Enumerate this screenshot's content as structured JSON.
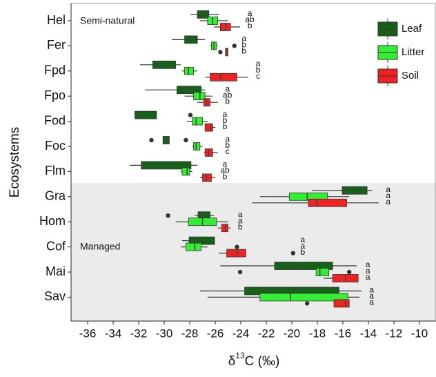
{
  "chart_data": {
    "type": "boxplot",
    "orientation": "horizontal",
    "x_label": {
      "prefix": "δ",
      "sup": "13",
      "suffix": "C (‰)"
    },
    "y_label": "Ecosystems",
    "annotations": [
      "Semi-natural",
      "Managed"
    ],
    "categories": [
      "Hel",
      "Fer",
      "Fpd",
      "Fpo",
      "Fod",
      "Foc",
      "Flm",
      "Gra",
      "Hom",
      "Cof",
      "Mai",
      "Sav"
    ],
    "xlim": [
      -37.3,
      -8.7
    ],
    "xticks": [
      -36,
      -34,
      -32,
      -30,
      -28,
      -26,
      -24,
      -22,
      -20,
      -18,
      -16,
      -14,
      -12,
      -10
    ],
    "legend": "top-right",
    "series": [
      {
        "name": "Leaf",
        "color": "#17601a",
        "letters": [
          "a",
          "a",
          "a",
          "a",
          "a",
          "a",
          "a",
          "a",
          "a",
          "a",
          "a",
          "a"
        ],
        "values": [
          {
            "min": -27.95,
            "q1": -27.4,
            "median": -27.0,
            "q3": -26.5,
            "max": -25.7,
            "outliers": []
          },
          {
            "min": -29.4,
            "q1": -28.4,
            "median": -27.9,
            "q3": -27.4,
            "max": -26.8,
            "outliers": []
          },
          {
            "min": -31.9,
            "q1": -30.9,
            "median": -30.5,
            "q3": -29.1,
            "max": -28.7,
            "outliers": []
          },
          {
            "min": -31.5,
            "q1": -29.0,
            "median": -28.3,
            "q3": -27.1,
            "max": -26.8,
            "outliers": []
          },
          {
            "min": -32.3,
            "q1": -32.3,
            "median": -32.1,
            "q3": -30.6,
            "max": -30.6,
            "outliers": [
              -27.95
            ]
          },
          {
            "min": -30.1,
            "q1": -30.1,
            "median": -29.9,
            "q3": -29.6,
            "max": -29.6,
            "outliers": [
              -31.0,
              -28.3
            ]
          },
          {
            "min": -32.7,
            "q1": -31.8,
            "median": -30.3,
            "q3": -27.9,
            "max": -27.4,
            "outliers": []
          },
          {
            "min": -18.4,
            "q1": -16.05,
            "median": -15.8,
            "q3": -14.1,
            "max": -13.7,
            "outliers": []
          },
          {
            "min": -27.6,
            "q1": -27.35,
            "median": -27.0,
            "q3": -26.4,
            "max": -26.1,
            "outliers": [
              -29.7
            ]
          },
          {
            "min": -28.6,
            "q1": -28.05,
            "median": -27.7,
            "q3": -26.05,
            "max": -26.05,
            "outliers": []
          },
          {
            "min": -25.6,
            "q1": -21.35,
            "median": -19.6,
            "q3": -16.8,
            "max": -14.9,
            "outliers": []
          },
          {
            "min": -27.2,
            "q1": -23.7,
            "median": -19.6,
            "q3": -16.3,
            "max": -14.5,
            "outliers": []
          }
        ]
      },
      {
        "name": "Litter",
        "color": "#33ee33",
        "letters": [
          "ab",
          "b",
          "b",
          "ab",
          "b",
          "b",
          "ab",
          "a",
          "a",
          "a",
          "a",
          "a"
        ],
        "values": [
          {
            "min": -27.2,
            "q1": -26.6,
            "median": -26.2,
            "q3": -25.8,
            "max": -25.0,
            "outliers": []
          },
          {
            "min": -26.4,
            "q1": -26.3,
            "median": -26.1,
            "q3": -25.9,
            "max": -25.8,
            "outliers": [
              -24.5
            ]
          },
          {
            "min": -28.6,
            "q1": -28.4,
            "median": -28.1,
            "q3": -27.7,
            "max": -27.4,
            "outliers": []
          },
          {
            "min": -28.4,
            "q1": -27.7,
            "median": -27.2,
            "q3": -26.8,
            "max": -26.2,
            "outliers": []
          },
          {
            "min": -28.2,
            "q1": -27.8,
            "median": -27.5,
            "q3": -27.0,
            "max": -26.6,
            "outliers": []
          },
          {
            "min": -27.8,
            "q1": -27.7,
            "median": -27.5,
            "q3": -27.2,
            "max": -27.0,
            "outliers": []
          },
          {
            "min": -28.7,
            "q1": -28.6,
            "median": -28.2,
            "q3": -28.0,
            "max": -27.8,
            "outliers": []
          },
          {
            "min": -22.5,
            "q1": -20.2,
            "median": -18.8,
            "q3": -17.2,
            "max": -15.5,
            "outliers": []
          },
          {
            "min": -29.1,
            "q1": -28.1,
            "median": -27.0,
            "q3": -25.9,
            "max": -25.0,
            "outliers": []
          },
          {
            "min": -28.7,
            "q1": -28.3,
            "median": -27.6,
            "q3": -27.1,
            "max": -26.6,
            "outliers": [
              -24.3
            ]
          },
          {
            "min": -18.1,
            "q1": -18.1,
            "median": -17.8,
            "q3": -17.1,
            "max": -17.1,
            "outliers": [
              -24.05,
              -15.5
            ]
          },
          {
            "min": -26.6,
            "q1": -22.5,
            "median": -20.1,
            "q3": -15.6,
            "max": -14.7,
            "outliers": []
          }
        ]
      },
      {
        "name": "Soil",
        "color": "#ee2222",
        "letters": [
          "b",
          "b",
          "c",
          "b",
          "b",
          "c",
          "b",
          "a",
          "b",
          "b",
          "a",
          "a"
        ],
        "values": [
          {
            "min": -26.1,
            "q1": -25.6,
            "median": -25.2,
            "q3": -24.8,
            "max": -24.05,
            "outliers": []
          },
          {
            "min": -25.2,
            "q1": -25.2,
            "median": -25.1,
            "q3": -25.0,
            "max": -25.0,
            "outliers": [
              -25.6
            ]
          },
          {
            "min": -26.8,
            "q1": -26.4,
            "median": -25.6,
            "q3": -24.3,
            "max": -23.4,
            "outliers": []
          },
          {
            "min": -27.4,
            "q1": -26.9,
            "median": -26.7,
            "q3": -26.4,
            "max": -25.8,
            "outliers": []
          },
          {
            "min": -26.8,
            "q1": -26.8,
            "median": -26.4,
            "q3": -26.2,
            "max": -26.0,
            "outliers": []
          },
          {
            "min": -26.9,
            "q1": -26.8,
            "median": -26.5,
            "q3": -26.2,
            "max": -25.8,
            "outliers": []
          },
          {
            "min": -27.2,
            "q1": -27.0,
            "median": -26.7,
            "q3": -26.3,
            "max": -26.0,
            "outliers": []
          },
          {
            "min": -23.1,
            "q1": -18.7,
            "median": -18.05,
            "q3": -15.7,
            "max": -13.2,
            "outliers": []
          },
          {
            "min": -25.8,
            "q1": -25.5,
            "median": -25.2,
            "q3": -25.0,
            "max": -24.8,
            "outliers": []
          },
          {
            "min": -25.7,
            "q1": -25.1,
            "median": -24.3,
            "q3": -23.6,
            "max": -23.6,
            "outliers": [
              -19.9
            ]
          },
          {
            "min": -17.5,
            "q1": -16.8,
            "median": -15.8,
            "q3": -14.8,
            "max": -14.8,
            "outliers": []
          },
          {
            "min": -16.7,
            "q1": -16.7,
            "median": -15.8,
            "q3": -15.5,
            "max": -15.5,
            "outliers": [
              -18.8
            ]
          }
        ]
      }
    ]
  }
}
